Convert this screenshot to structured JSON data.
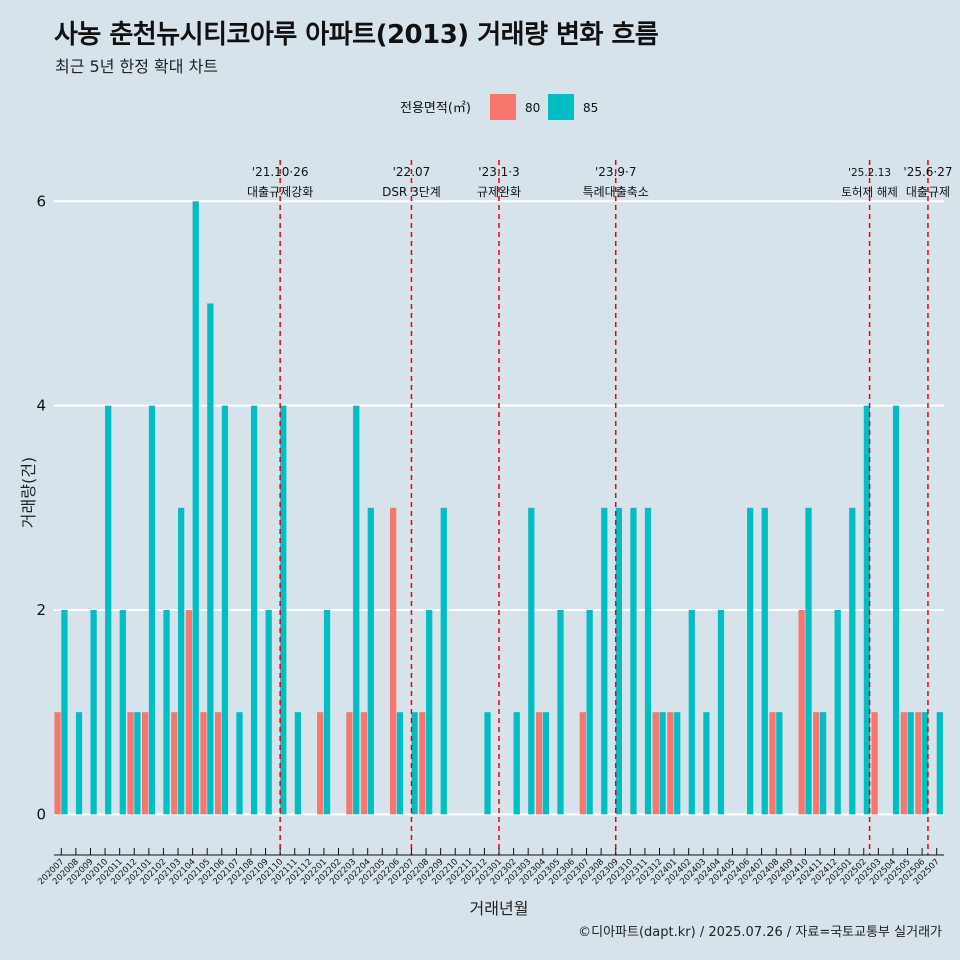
{
  "title": "사농 춘천뉴시티코아루 아파트(2013) 거래량 변화 흐름",
  "subtitle": "최근 5년 한정 확대 차트",
  "caption": "©디아파트(dapt.kr) / 2025.07.26 / 자료=국토교통부 실거래가",
  "colors": {
    "s80": "#f8766d",
    "s85": "#00bfc4",
    "background": "#d6e3ea",
    "event_line": "#ee0000"
  },
  "chart_data": {
    "type": "bar",
    "title": "사농 춘천뉴시티코아루 아파트(2013) 거래량 변화 흐름",
    "xlabel": "거래년월",
    "ylabel": "거래량(건)",
    "ylim": [
      -0.3,
      6.6
    ],
    "yticks": [
      0,
      2,
      4,
      6
    ],
    "grid": true,
    "legend": {
      "title": "전용면적(㎡)",
      "position": "top"
    },
    "categories": [
      "202007",
      "202008",
      "202009",
      "202010",
      "202011",
      "202012",
      "202101",
      "202102",
      "202103",
      "202104",
      "202105",
      "202106",
      "202107",
      "202108",
      "202109",
      "202110",
      "202111",
      "202112",
      "202201",
      "202202",
      "202203",
      "202204",
      "202205",
      "202206",
      "202207",
      "202208",
      "202209",
      "202210",
      "202211",
      "202212",
      "202301",
      "202302",
      "202303",
      "202304",
      "202305",
      "202306",
      "202307",
      "202308",
      "202309",
      "202310",
      "202311",
      "202312",
      "202401",
      "202402",
      "202403",
      "202404",
      "202405",
      "202406",
      "202407",
      "202408",
      "202409",
      "202410",
      "202411",
      "202412",
      "202501",
      "202502",
      "202503",
      "202504",
      "202505",
      "202506",
      "202507"
    ],
    "series": [
      {
        "name": "80",
        "values": [
          1,
          0,
          0,
          0,
          0,
          1,
          1,
          0,
          1,
          2,
          1,
          1,
          0,
          0,
          0,
          0,
          0,
          0,
          1,
          0,
          1,
          1,
          0,
          3,
          0,
          1,
          0,
          0,
          0,
          0,
          0,
          0,
          0,
          1,
          0,
          0,
          1,
          0,
          0,
          0,
          0,
          1,
          1,
          0,
          0,
          0,
          0,
          0,
          0,
          1,
          0,
          2,
          1,
          0,
          0,
          0,
          1,
          0,
          1,
          1,
          0
        ]
      },
      {
        "name": "85",
        "values": [
          2,
          1,
          2,
          4,
          2,
          1,
          4,
          2,
          3,
          6,
          5,
          4,
          1,
          4,
          2,
          4,
          1,
          0,
          2,
          0,
          4,
          3,
          0,
          1,
          1,
          2,
          3,
          0,
          0,
          1,
          0,
          1,
          3,
          1,
          2,
          0,
          2,
          3,
          3,
          3,
          3,
          1,
          1,
          2,
          1,
          2,
          0,
          3,
          3,
          1,
          0,
          3,
          1,
          2,
          3,
          4,
          0,
          4,
          1,
          1,
          1
        ]
      }
    ],
    "events": [
      {
        "date": "'21.10·26",
        "label": "대출규제강화",
        "position": 15
      },
      {
        "date": "'22.07",
        "label": "DSR 3단계",
        "position": 24
      },
      {
        "date": "'23.1·3",
        "label": "규제완화",
        "position": 30
      },
      {
        "date": "'23.9·7",
        "label": "특례대출축소",
        "position": 38
      },
      {
        "date": "'25.2.13",
        "label": "토허제 해제",
        "position": 55.4
      },
      {
        "date": "'25.6·27",
        "label": "대출규제",
        "position": 59.4
      }
    ]
  }
}
